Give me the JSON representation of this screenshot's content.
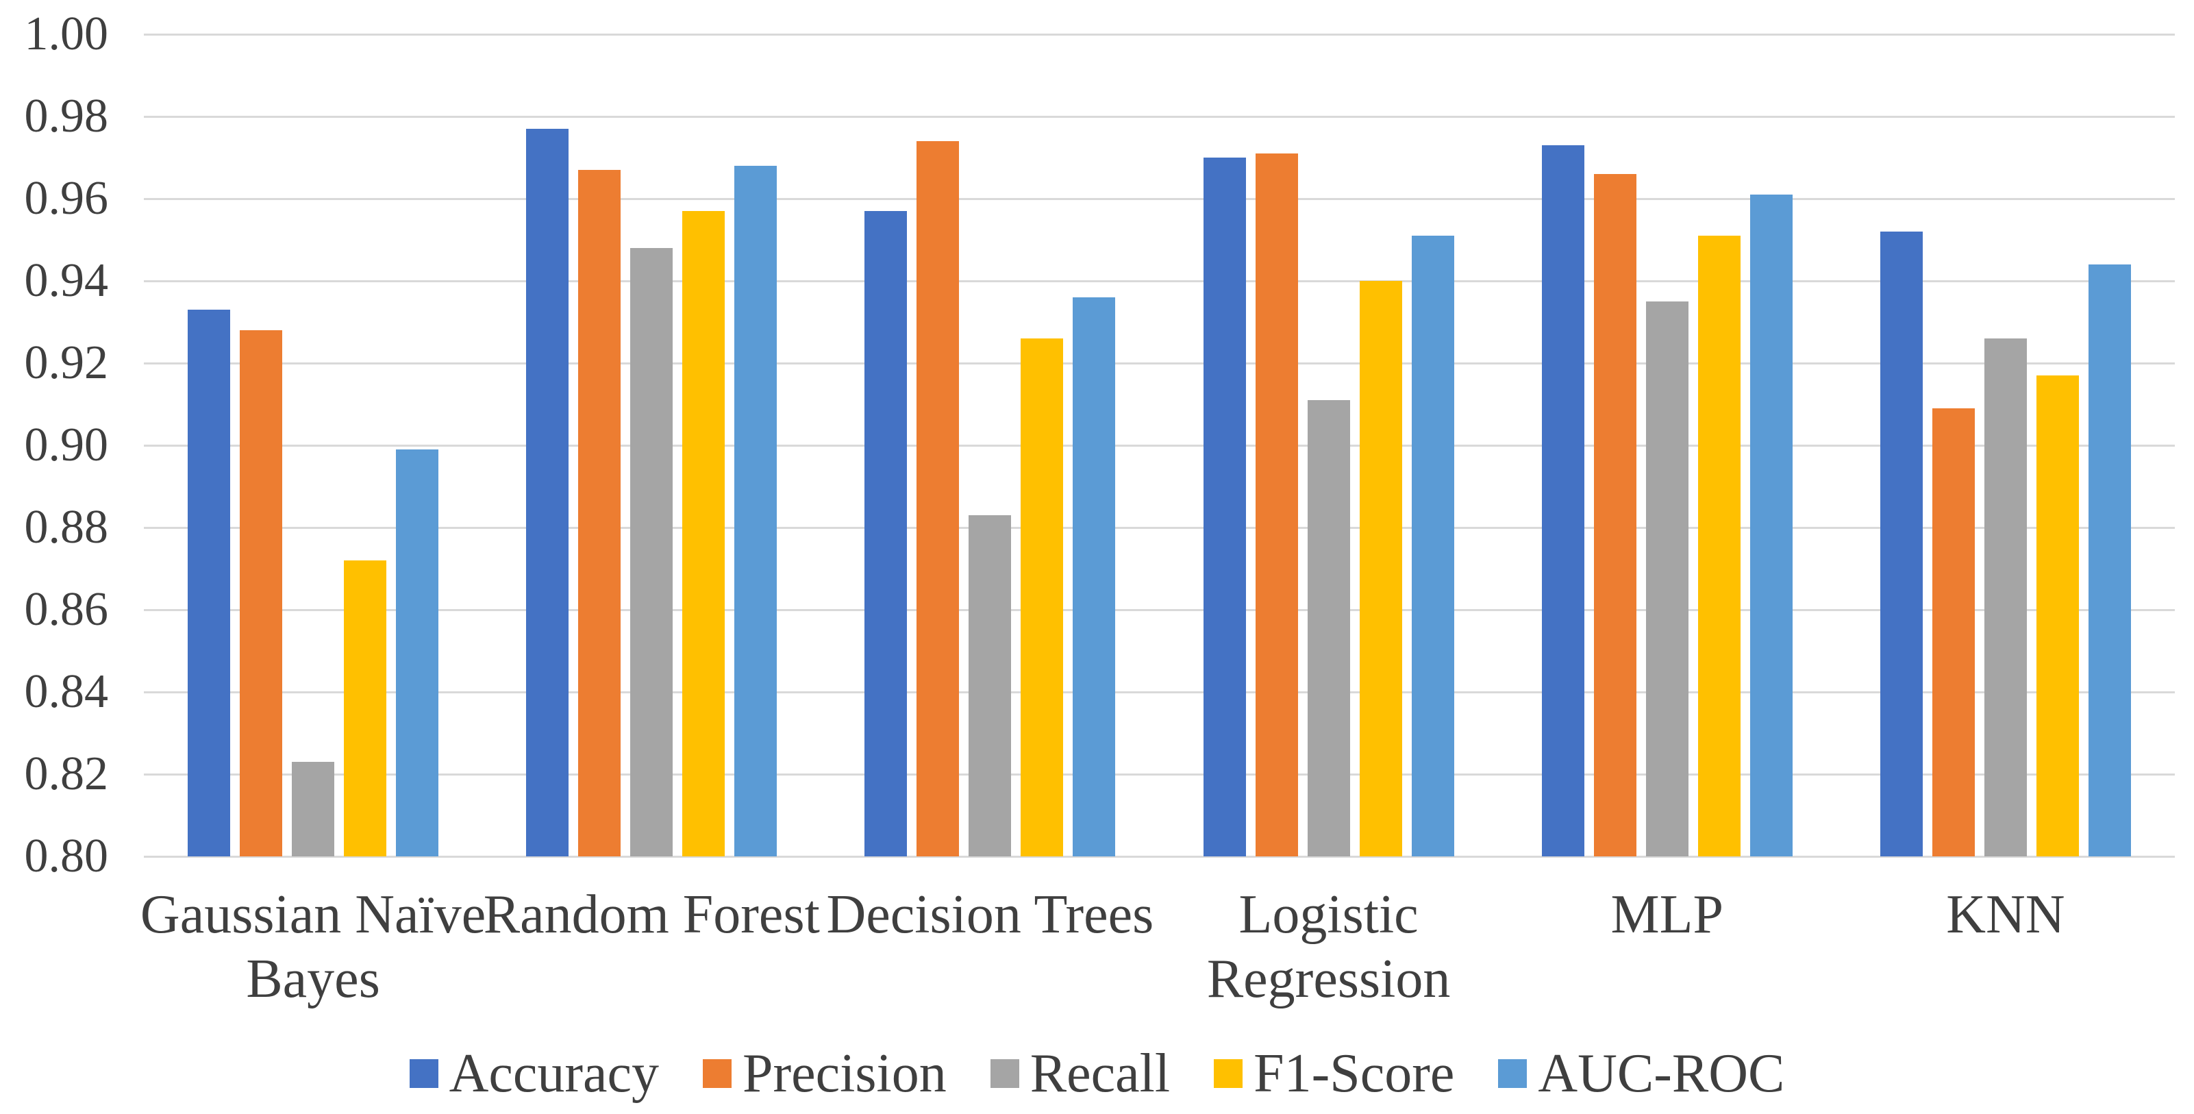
{
  "chart_data": {
    "type": "bar",
    "title": "",
    "xlabel": "",
    "ylabel": "",
    "categories": [
      "Gaussian Naïve Bayes",
      "Random Forest",
      "Decision Trees",
      "Logistic Regression",
      "MLP",
      "KNN"
    ],
    "series": [
      {
        "name": "Accuracy",
        "color": "#4472C4",
        "values": [
          0.933,
          0.977,
          0.957,
          0.97,
          0.973,
          0.952
        ]
      },
      {
        "name": "Precision",
        "color": "#ED7D31",
        "values": [
          0.928,
          0.967,
          0.974,
          0.971,
          0.966,
          0.909
        ]
      },
      {
        "name": "Recall",
        "color": "#A5A5A5",
        "values": [
          0.823,
          0.948,
          0.883,
          0.911,
          0.935,
          0.926
        ]
      },
      {
        "name": "F1-Score",
        "color": "#FFC000",
        "values": [
          0.872,
          0.957,
          0.926,
          0.94,
          0.951,
          0.917
        ]
      },
      {
        "name": "AUC-ROC",
        "color": "#5B9BD5",
        "values": [
          0.899,
          0.968,
          0.936,
          0.951,
          0.961,
          0.944
        ]
      }
    ],
    "ylim": [
      0.8,
      1.0
    ],
    "ytick_step": 0.02,
    "ytick_labels": [
      "0.80",
      "0.82",
      "0.84",
      "0.86",
      "0.88",
      "0.90",
      "0.92",
      "0.94",
      "0.96",
      "0.98",
      "1.00"
    ],
    "grid": true,
    "legend_position": "bottom"
  },
  "style": {
    "grid_color": "#D9D9D9",
    "text_color": "#3F3F3F",
    "background": "#FFFFFF"
  }
}
